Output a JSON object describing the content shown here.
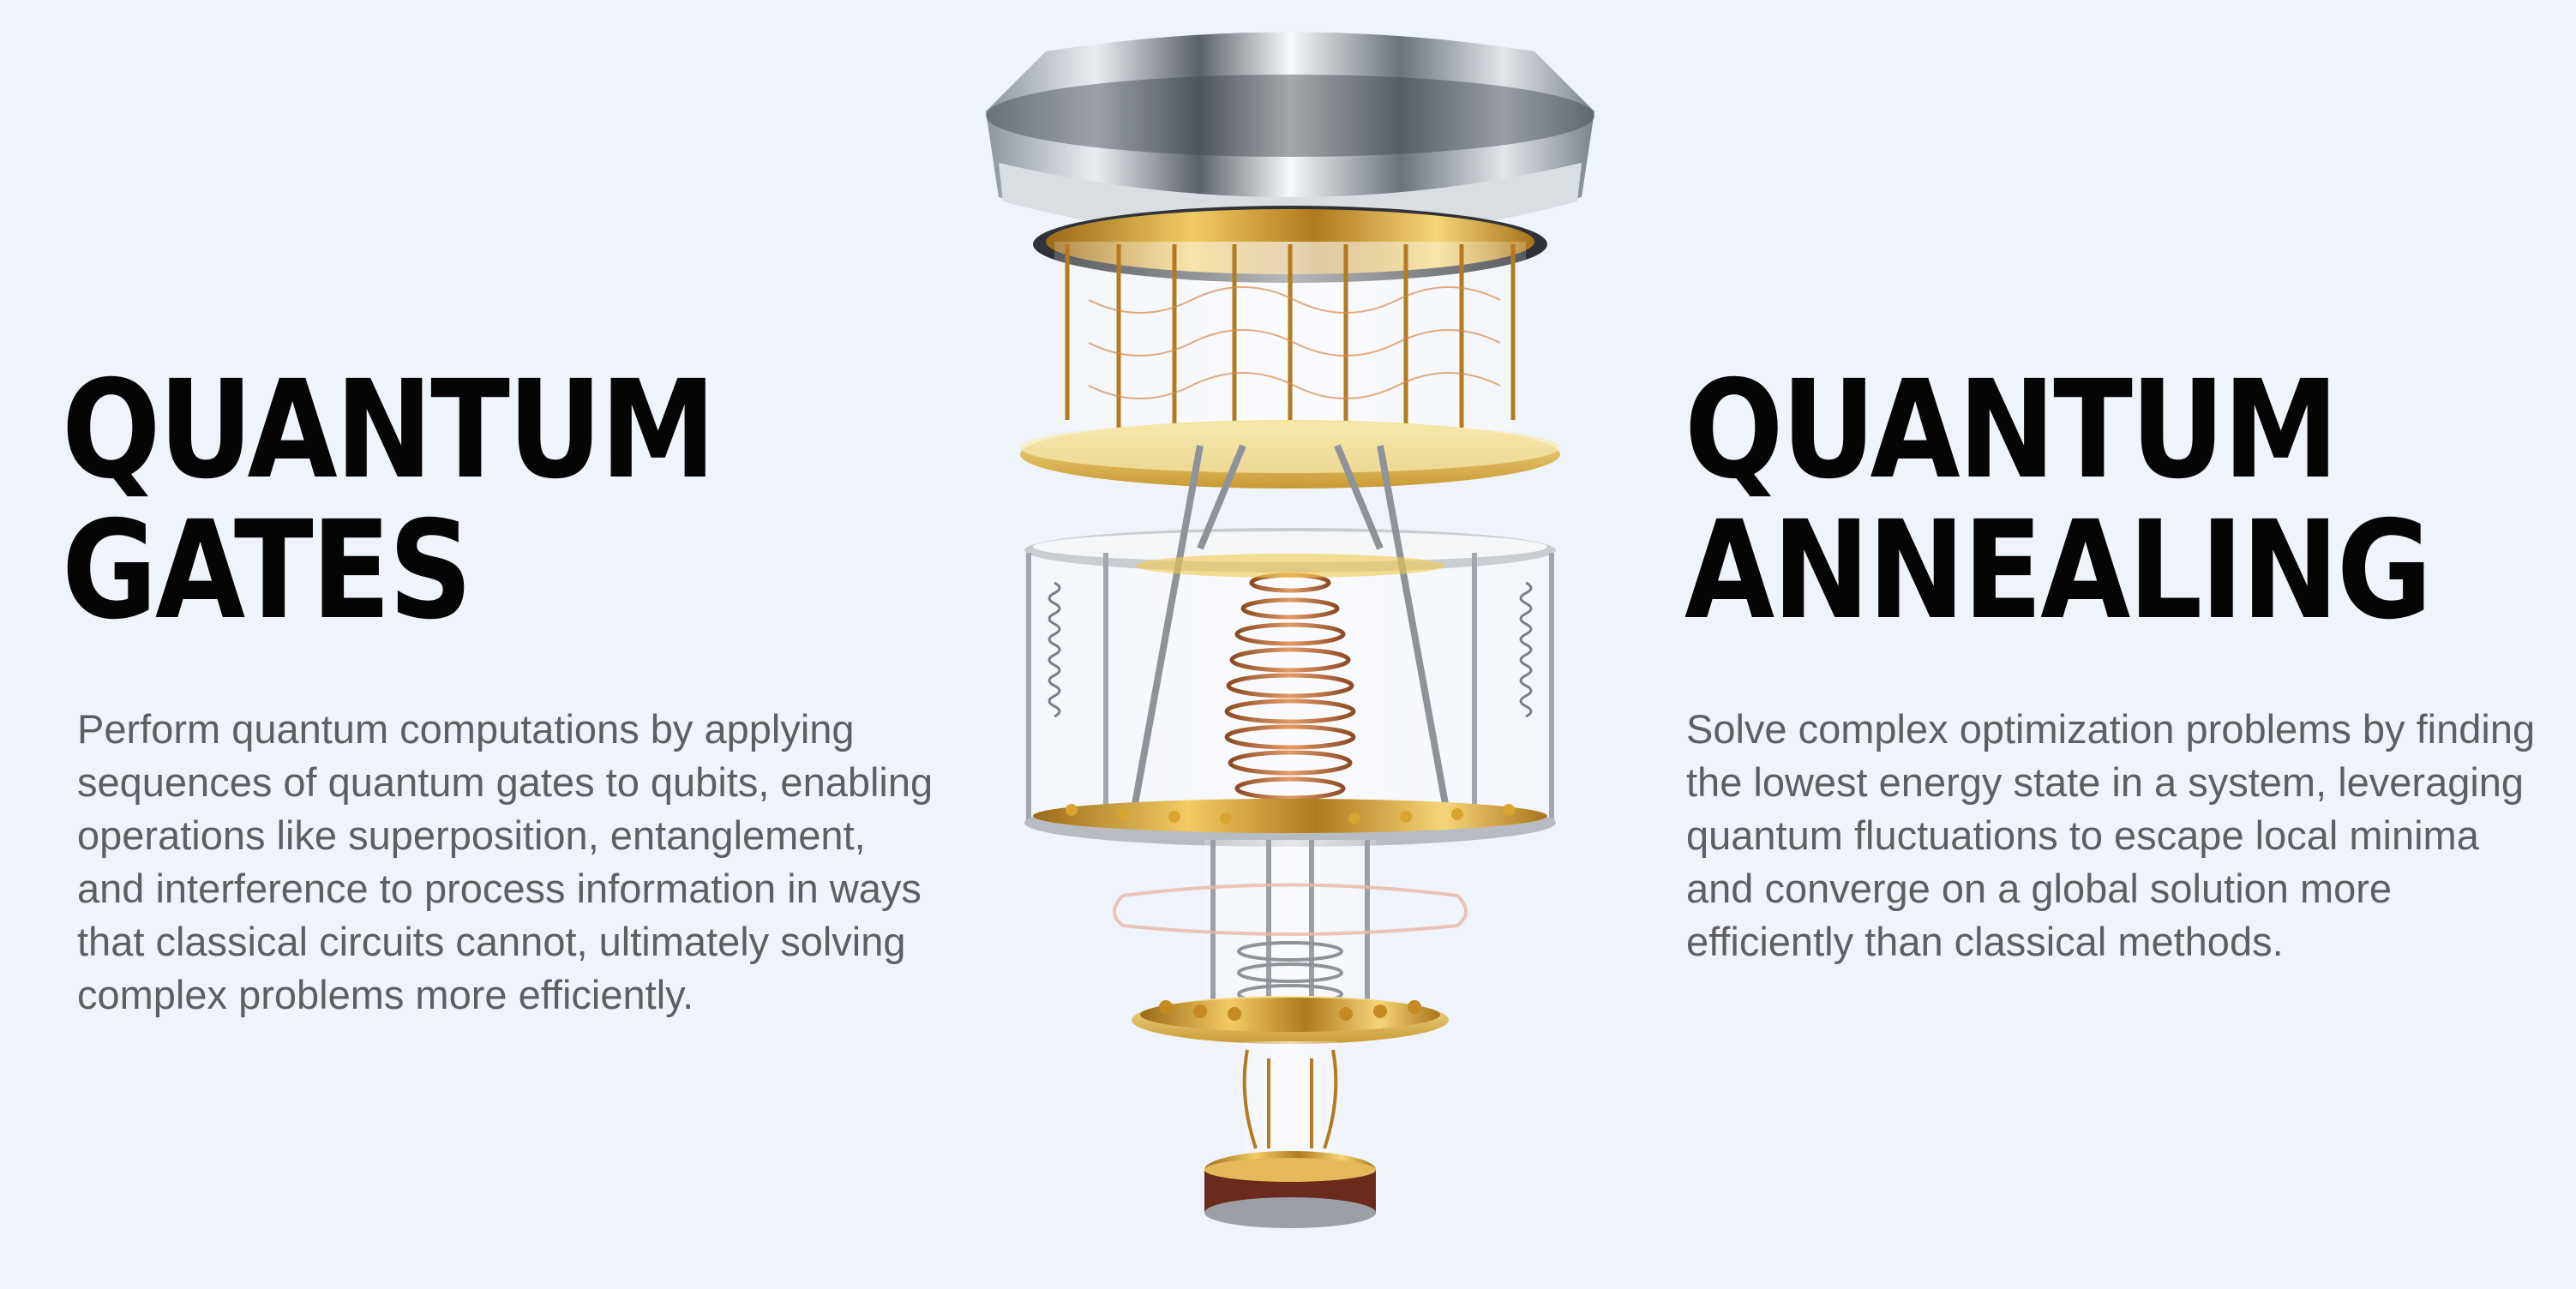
{
  "left": {
    "title_line1": "QUANTUM",
    "title_line2": "GATES",
    "description": "Perform quantum computations by applying sequences of quantum gates to qubits, enabling operations like superposition, entanglement, and interference to process information in ways that classical circuits cannot, ultimately solving complex problems more efficiently."
  },
  "right": {
    "title_line1": "QUANTUM",
    "title_line2": "ANNEALING",
    "description": "Solve complex optimization problems by finding the lowest energy state in a system, leveraging quantum fluctuations to escape local minima and converge on a global solution more efficiently than classical methods."
  },
  "colors": {
    "background": "#eff3fa",
    "title": "#050505",
    "body_text": "#5f5f63",
    "gold": "#d9a531",
    "copper": "#b96a3a",
    "silver": "#c9cdd2"
  }
}
